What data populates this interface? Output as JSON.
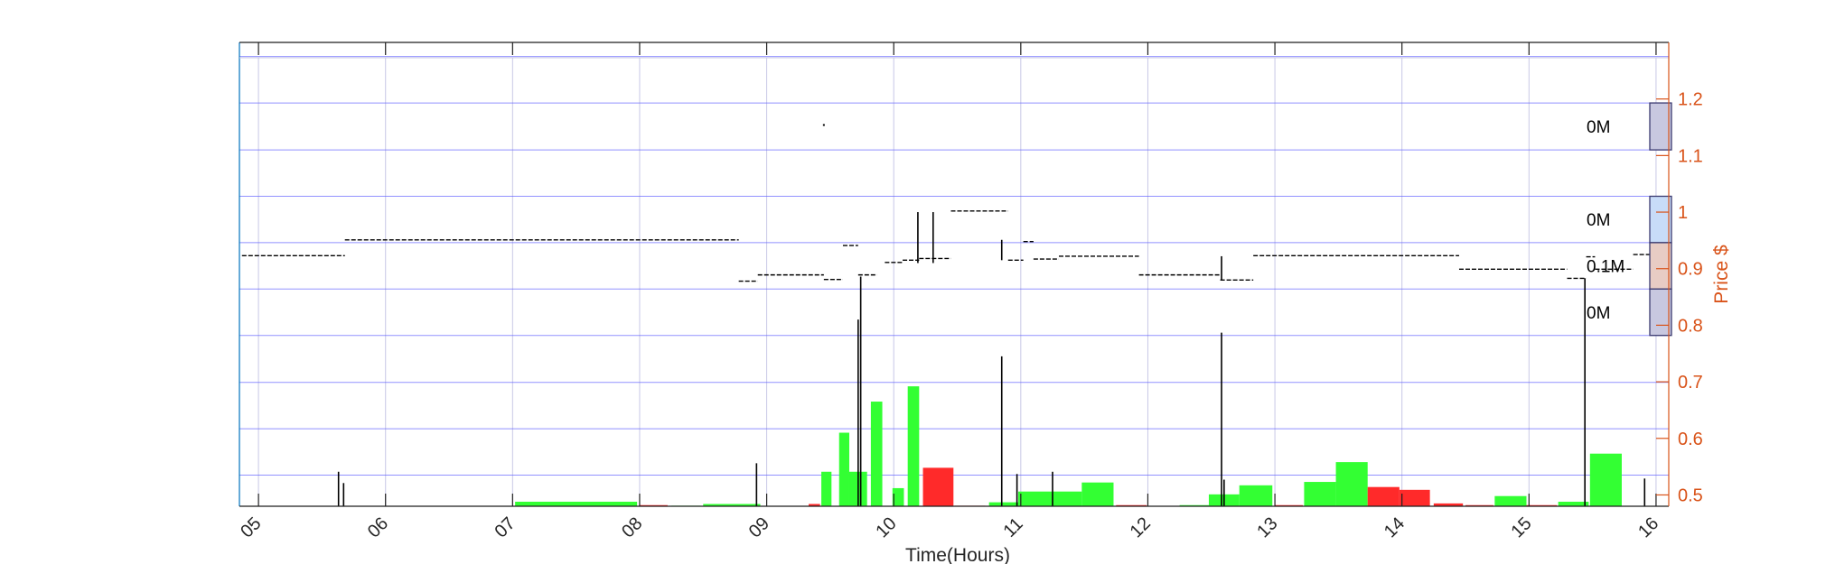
{
  "colors": {
    "grid": "#c8c8e6",
    "band": "#6464ff",
    "up": "#33ff33",
    "down": "#ff2a2a",
    "price": "#000000",
    "right_axis": "#d95319",
    "frame": "#1f1f1f",
    "left_axis": "#0072bd",
    "vp_low": "#c8c8e0",
    "vp_mid": "#c8dcf8",
    "vp_high": "#e8ccc4"
  },
  "chart_data": {
    "type": "bar",
    "title": "",
    "xlabel": "Time(Hours)",
    "ylabel_right": "Price $",
    "xlim": [
      4.85,
      16.1
    ],
    "ylim_right": [
      0.48,
      1.3
    ],
    "x_ticks": [
      5,
      6,
      7,
      8,
      9,
      10,
      11,
      12,
      13,
      14,
      15,
      16
    ],
    "x_tick_labels": [
      "05",
      "06",
      "07",
      "08",
      "09",
      "10",
      "11",
      "12",
      "13",
      "14",
      "15",
      "16"
    ],
    "y_ticks_right": [
      0.5,
      0.6,
      0.7,
      0.8,
      0.9,
      1.0,
      1.1,
      1.2
    ],
    "y_tick_labels_right": [
      "0.5",
      "0.6",
      "0.7",
      "0.8",
      "0.9",
      "1",
      "1.1",
      "1.2"
    ],
    "grid": true,
    "price_bands": [
      0.535,
      0.617,
      0.699,
      0.782,
      0.864,
      0.946,
      1.028,
      1.11,
      1.193,
      1.275
    ],
    "volume_profile": [
      {
        "label": "0M",
        "low": 1.11,
        "high": 1.193,
        "kind": "low"
      },
      {
        "label": "0M",
        "low": 0.946,
        "high": 1.028,
        "kind": "mid"
      },
      {
        "label": "0.1M",
        "low": 0.864,
        "high": 0.946,
        "kind": "high"
      },
      {
        "label": "0M",
        "low": 0.782,
        "high": 0.864,
        "kind": "low"
      }
    ],
    "volume_bars": [
      {
        "x0": 7.02,
        "x1": 7.98,
        "top": 0.488,
        "dir": "up"
      },
      {
        "x0": 8.0,
        "x1": 8.22,
        "top": 0.482,
        "dir": "down"
      },
      {
        "x0": 8.25,
        "x1": 8.48,
        "top": 0.481,
        "dir": "up"
      },
      {
        "x0": 8.5,
        "x1": 8.95,
        "top": 0.484,
        "dir": "up"
      },
      {
        "x0": 9.33,
        "x1": 9.42,
        "top": 0.484,
        "dir": "down"
      },
      {
        "x0": 9.43,
        "x1": 9.51,
        "top": 0.541,
        "dir": "up"
      },
      {
        "x0": 9.57,
        "x1": 9.65,
        "top": 0.61,
        "dir": "up"
      },
      {
        "x0": 9.65,
        "x1": 9.79,
        "top": 0.541,
        "dir": "up"
      },
      {
        "x0": 9.82,
        "x1": 9.91,
        "top": 0.665,
        "dir": "up"
      },
      {
        "x0": 9.99,
        "x1": 10.08,
        "top": 0.512,
        "dir": "up"
      },
      {
        "x0": 10.11,
        "x1": 10.2,
        "top": 0.692,
        "dir": "up"
      },
      {
        "x0": 10.23,
        "x1": 10.47,
        "top": 0.548,
        "dir": "down"
      },
      {
        "x0": 10.48,
        "x1": 10.72,
        "top": 0.481,
        "dir": "down"
      },
      {
        "x0": 10.75,
        "x1": 10.98,
        "top": 0.487,
        "dir": "up"
      },
      {
        "x0": 10.98,
        "x1": 11.25,
        "top": 0.506,
        "dir": "up"
      },
      {
        "x0": 11.25,
        "x1": 11.48,
        "top": 0.506,
        "dir": "up"
      },
      {
        "x0": 11.48,
        "x1": 11.73,
        "top": 0.522,
        "dir": "up"
      },
      {
        "x0": 11.75,
        "x1": 11.99,
        "top": 0.482,
        "dir": "down"
      },
      {
        "x0": 12.25,
        "x1": 12.48,
        "top": 0.482,
        "dir": "up"
      },
      {
        "x0": 12.48,
        "x1": 12.72,
        "top": 0.501,
        "dir": "up"
      },
      {
        "x0": 12.72,
        "x1": 12.98,
        "top": 0.517,
        "dir": "up"
      },
      {
        "x0": 13.0,
        "x1": 13.22,
        "top": 0.482,
        "dir": "down"
      },
      {
        "x0": 13.23,
        "x1": 13.48,
        "top": 0.523,
        "dir": "up"
      },
      {
        "x0": 13.48,
        "x1": 13.73,
        "top": 0.558,
        "dir": "up"
      },
      {
        "x0": 13.73,
        "x1": 13.98,
        "top": 0.514,
        "dir": "down"
      },
      {
        "x0": 13.98,
        "x1": 14.22,
        "top": 0.509,
        "dir": "down"
      },
      {
        "x0": 14.25,
        "x1": 14.48,
        "top": 0.485,
        "dir": "down"
      },
      {
        "x0": 14.5,
        "x1": 14.72,
        "top": 0.482,
        "dir": "down"
      },
      {
        "x0": 14.73,
        "x1": 14.98,
        "top": 0.498,
        "dir": "up"
      },
      {
        "x0": 14.98,
        "x1": 15.22,
        "top": 0.482,
        "dir": "down"
      },
      {
        "x0": 15.23,
        "x1": 15.47,
        "top": 0.488,
        "dir": "up"
      },
      {
        "x0": 15.48,
        "x1": 15.73,
        "top": 0.573,
        "dir": "up"
      }
    ],
    "price_segments": [
      {
        "x0": 4.87,
        "x1": 5.68,
        "y": 0.923
      },
      {
        "x0": 5.68,
        "x1": 8.78,
        "y": 0.951
      },
      {
        "x0": 8.78,
        "x1": 8.93,
        "y": 0.878
      },
      {
        "x0": 8.93,
        "x1": 9.45,
        "y": 0.889
      },
      {
        "x0": 9.45,
        "x1": 9.6,
        "y": 0.881
      },
      {
        "x0": 9.6,
        "x1": 9.72,
        "y": 0.941
      },
      {
        "x0": 9.72,
        "x1": 9.87,
        "y": 0.889
      },
      {
        "x0": 9.93,
        "x1": 10.07,
        "y": 0.911
      },
      {
        "x0": 10.07,
        "x1": 10.2,
        "y": 0.915
      },
      {
        "x0": 10.2,
        "x1": 10.45,
        "y": 0.918
      },
      {
        "x0": 10.45,
        "x1": 10.9,
        "y": 1.002
      },
      {
        "x0": 10.9,
        "x1": 11.02,
        "y": 0.915
      },
      {
        "x0": 11.02,
        "x1": 11.1,
        "y": 0.948
      },
      {
        "x0": 11.1,
        "x1": 11.3,
        "y": 0.917
      },
      {
        "x0": 11.3,
        "x1": 11.93,
        "y": 0.922
      },
      {
        "x0": 11.93,
        "x1": 12.57,
        "y": 0.889
      },
      {
        "x0": 12.57,
        "x1": 12.83,
        "y": 0.88
      },
      {
        "x0": 12.83,
        "x1": 14.45,
        "y": 0.923
      },
      {
        "x0": 14.45,
        "x1": 15.3,
        "y": 0.899
      },
      {
        "x0": 15.3,
        "x1": 15.45,
        "y": 0.883
      },
      {
        "x0": 15.45,
        "x1": 15.52,
        "y": 0.921
      },
      {
        "x0": 15.52,
        "x1": 15.82,
        "y": 0.899
      },
      {
        "x0": 15.82,
        "x1": 15.98,
        "y": 0.925
      },
      {
        "x0": 15.98,
        "x1": 16.08,
        "y": 0.899
      }
    ],
    "price_spikes": [
      {
        "x": 5.63,
        "y0": 0.48,
        "y1": 0.541
      },
      {
        "x": 5.67,
        "y0": 0.48,
        "y1": 0.521
      },
      {
        "x": 8.92,
        "y0": 0.48,
        "y1": 0.556
      },
      {
        "x": 9.72,
        "y0": 0.48,
        "y1": 0.81
      },
      {
        "x": 9.74,
        "y0": 0.48,
        "y1": 0.886
      },
      {
        "x": 10.19,
        "y0": 0.91,
        "y1": 1.0
      },
      {
        "x": 10.31,
        "y0": 0.91,
        "y1": 1.0
      },
      {
        "x": 10.85,
        "y0": 0.48,
        "y1": 0.745
      },
      {
        "x": 10.85,
        "y0": 0.915,
        "y1": 0.951
      },
      {
        "x": 10.97,
        "y0": 0.48,
        "y1": 0.537
      },
      {
        "x": 11.25,
        "y0": 0.48,
        "y1": 0.541
      },
      {
        "x": 12.58,
        "y0": 0.48,
        "y1": 0.787
      },
      {
        "x": 12.58,
        "y0": 0.88,
        "y1": 0.922
      },
      {
        "x": 12.6,
        "y0": 0.48,
        "y1": 0.527
      },
      {
        "x": 15.44,
        "y0": 0.48,
        "y1": 0.883
      },
      {
        "x": 15.91,
        "y0": 0.48,
        "y1": 0.529
      },
      {
        "x": 15.97,
        "y0": 0.9,
        "y1": 0.925
      }
    ],
    "price_markers": [
      {
        "x": 9.45,
        "y": 1.154
      }
    ]
  }
}
